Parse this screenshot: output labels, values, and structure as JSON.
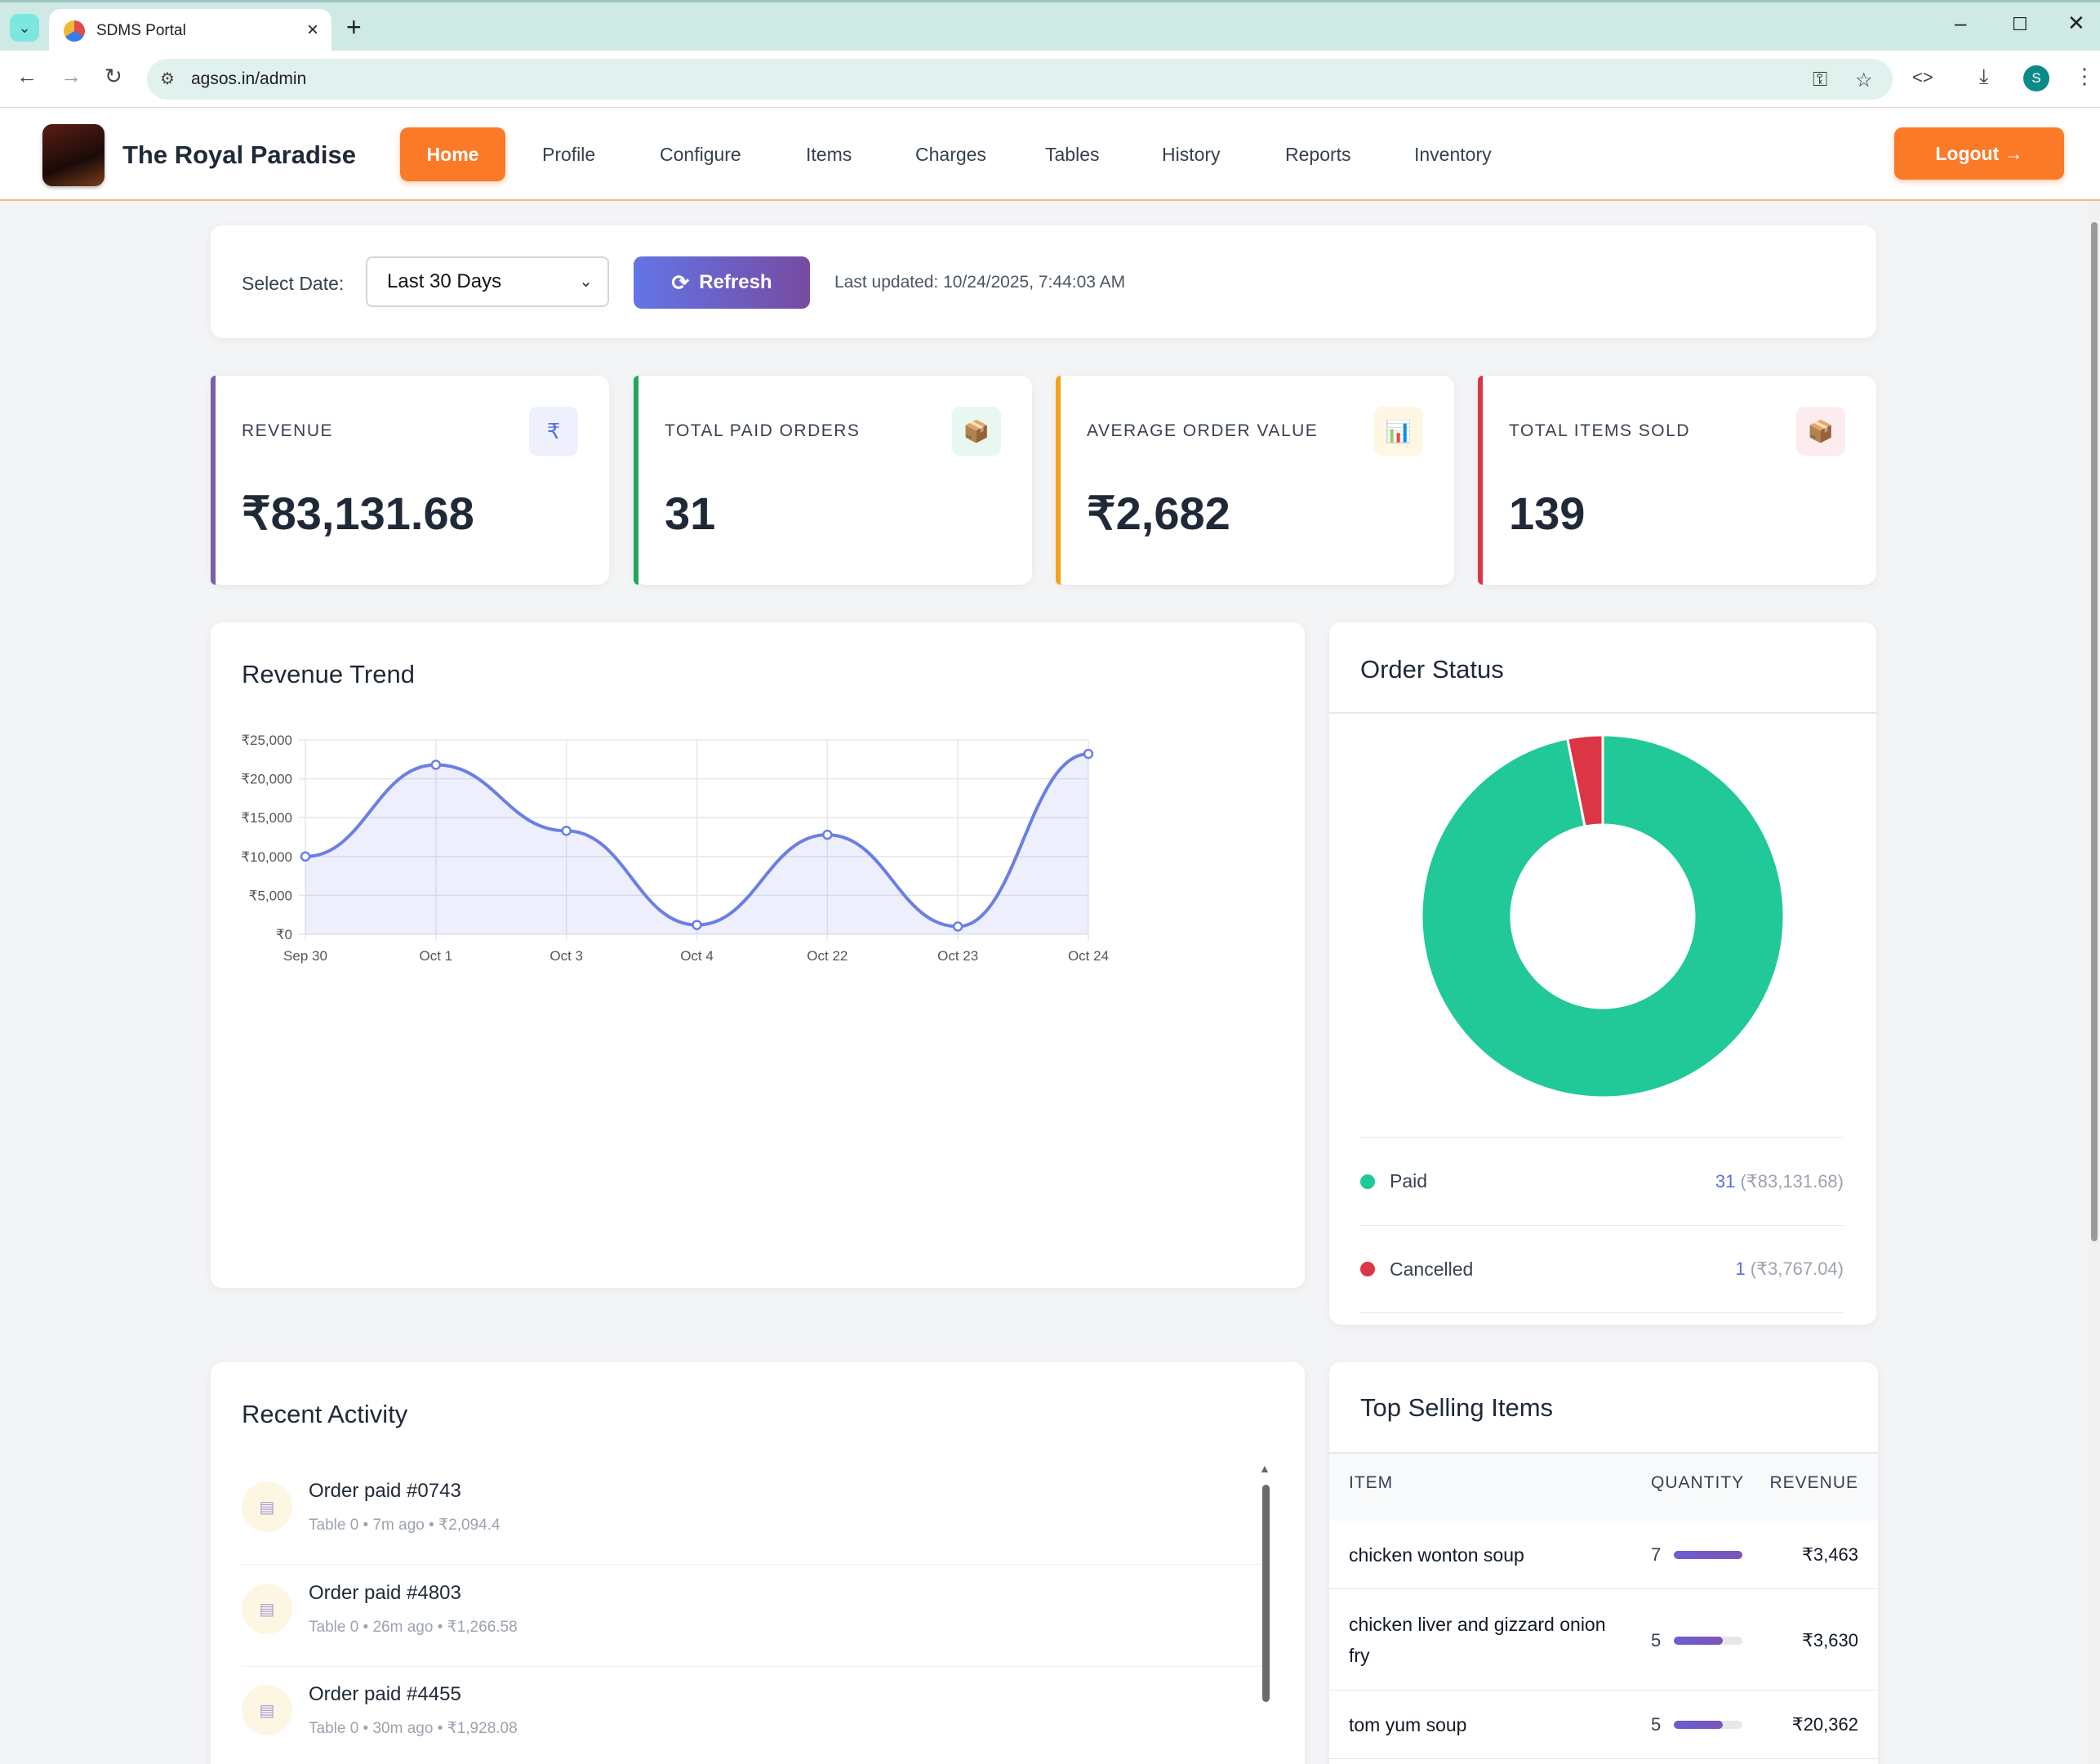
{
  "browser": {
    "tab_title": "SDMS Portal",
    "url": "agsos.in/admin",
    "avatar_letter": "S"
  },
  "header": {
    "brand": "The Royal Paradise",
    "nav": [
      "Home",
      "Profile",
      "Configure",
      "Items",
      "Charges",
      "Tables",
      "History",
      "Reports",
      "Inventory"
    ],
    "active_nav": "Home",
    "logout_label": "Logout →"
  },
  "filters": {
    "label": "Select Date:",
    "selected": "Last 30 Days",
    "refresh_label": "Refresh",
    "last_updated": "Last updated: 10/24/2025, 7:44:03 AM"
  },
  "kpis": [
    {
      "label": "REVENUE",
      "value": "₹83,131.68",
      "icon": "rupee-icon",
      "glyph": "₹",
      "accent": "#7b5ea7",
      "icon_bg": "#eef1fd",
      "icon_color": "#5b6fe0"
    },
    {
      "label": "TOTAL PAID ORDERS",
      "value": "31",
      "icon": "package-icon",
      "glyph": "📦",
      "accent": "#22a75a",
      "icon_bg": "#e8f7ef",
      "icon_color": "#a0522d"
    },
    {
      "label": "AVERAGE ORDER VALUE",
      "value": "₹2,682",
      "icon": "bar-chart-icon",
      "glyph": "📊",
      "accent": "#f5a316",
      "icon_bg": "#fff7e3",
      "icon_color": "#3b82f6"
    },
    {
      "label": "TOTAL ITEMS SOLD",
      "value": "139",
      "icon": "package-icon",
      "glyph": "📦",
      "accent": "#dc3545",
      "icon_bg": "#fdecee",
      "icon_color": "#a0522d"
    }
  ],
  "revenue_trend": {
    "title": "Revenue Trend",
    "y_ticks": [
      "₹0",
      "₹5,000",
      "₹10,000",
      "₹15,000",
      "₹20,000",
      "₹25,000"
    ]
  },
  "chart_data": [
    {
      "type": "area",
      "title": "Revenue Trend",
      "categories": [
        "Sep 30",
        "Oct 1",
        "Oct 3",
        "Oct 4",
        "Oct 22",
        "Oct 23",
        "Oct 24"
      ],
      "values": [
        10000,
        21800,
        13300,
        1200,
        12800,
        1000,
        23200
      ],
      "ylim": [
        0,
        25000
      ],
      "grid": true,
      "color": "#6b7fe3"
    },
    {
      "type": "pie",
      "title": "Order Status",
      "labels": [
        "Paid",
        "Cancelled"
      ],
      "values": [
        31,
        1
      ],
      "colors": [
        "#20c997",
        "#dc3545"
      ]
    }
  ],
  "order_status": {
    "title": "Order Status",
    "items": [
      {
        "name": "Paid",
        "count": "31",
        "amount": "(₹83,131.68)",
        "color": "#20c997"
      },
      {
        "name": "Cancelled",
        "count": "1",
        "amount": "(₹3,767.04)",
        "color": "#dc3545"
      }
    ]
  },
  "recent_activity": {
    "title": "Recent Activity",
    "items": [
      {
        "title": "Order paid #0743",
        "meta": "Table 0 • 7m ago • ₹2,094.4"
      },
      {
        "title": "Order paid #4803",
        "meta": "Table 0 • 26m ago • ₹1,266.58"
      },
      {
        "title": "Order paid #4455",
        "meta": "Table 0 • 30m ago • ₹1,928.08"
      }
    ]
  },
  "top_selling": {
    "title": "Top Selling Items",
    "columns": [
      "ITEM",
      "QUANTITY",
      "REVENUE"
    ],
    "rows": [
      {
        "item": "chicken wonton soup",
        "qty": "7",
        "revenue": "₹3,463",
        "share": 1.0
      },
      {
        "item": "chicken liver and gizzard onion fry",
        "qty": "5",
        "revenue": "₹3,630",
        "share": 0.714
      },
      {
        "item": "tom yum soup",
        "qty": "5",
        "revenue": "₹20,362",
        "share": 0.714
      }
    ]
  }
}
